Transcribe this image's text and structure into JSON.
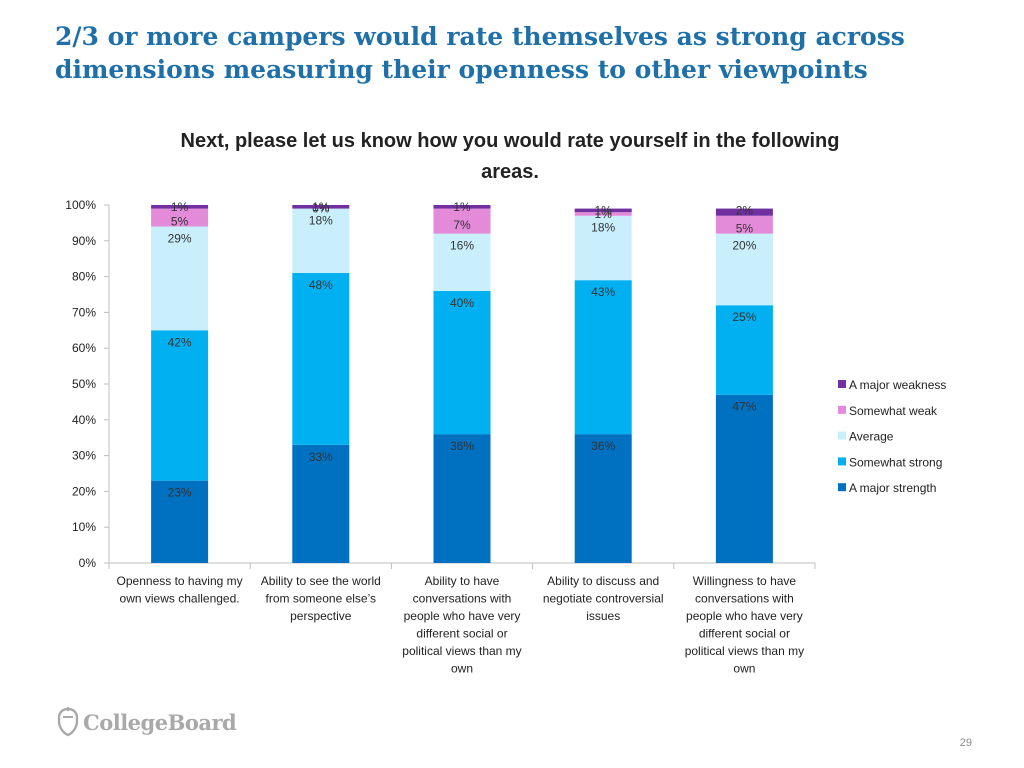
{
  "headline": "2/3 or more campers would rate themselves as strong across dimensions measuring their openness to other viewpoints",
  "page_number": "29",
  "logo": {
    "text": "CollegeBoard"
  },
  "chart_data": {
    "type": "bar",
    "stacked": true,
    "title": "Next, please let us know how you would rate yourself in the following areas.",
    "categories": [
      [
        "Openness to having my",
        "own views challenged."
      ],
      [
        "Ability to see the world",
        "from someone else’s",
        "perspective"
      ],
      [
        "Ability to have",
        "conversations with",
        "people who have very",
        "different social or",
        "political views than my",
        "own"
      ],
      [
        "Ability to discuss and",
        "negotiate controversial",
        "issues"
      ],
      [
        "Willingness to have",
        "conversations with",
        "people who have very",
        "different social or",
        "political views than my",
        "own"
      ]
    ],
    "series": [
      {
        "name": "A major strength",
        "color": "#0070c0",
        "values": [
          23,
          33,
          36,
          36,
          47
        ],
        "labels": [
          "23%",
          "33%",
          "36%",
          "36%",
          "47%"
        ]
      },
      {
        "name": "Somewhat strong",
        "color": "#00b0f0",
        "values": [
          42,
          48,
          40,
          43,
          25
        ],
        "labels": [
          "42%",
          "48%",
          "40%",
          "43%",
          "25%"
        ]
      },
      {
        "name": "Average",
        "color": "#c9effc",
        "values": [
          29,
          18,
          16,
          18,
          20
        ],
        "labels": [
          "29%",
          "18%",
          "16%",
          "18%",
          "20%"
        ]
      },
      {
        "name": "Somewhat weak",
        "color": "#e38ad8",
        "values": [
          5,
          0,
          7,
          1,
          5
        ],
        "labels": [
          "5%",
          "0%",
          "7%",
          "1%",
          "5%"
        ]
      },
      {
        "name": "A major weakness",
        "color": "#7030a0",
        "values": [
          1,
          1,
          1,
          1,
          2
        ],
        "labels": [
          "1%",
          "1%",
          "1%",
          "1%",
          "2%"
        ]
      }
    ],
    "yticks": [
      "0%",
      "10%",
      "20%",
      "30%",
      "40%",
      "50%",
      "60%",
      "70%",
      "80%",
      "90%",
      "100%"
    ],
    "ylim": [
      0,
      100
    ],
    "legend_position": "right",
    "legend_order": [
      "A major weakness",
      "Somewhat weak",
      "Average",
      "Somewhat strong",
      "A major strength"
    ],
    "xlabel": "",
    "ylabel": ""
  }
}
